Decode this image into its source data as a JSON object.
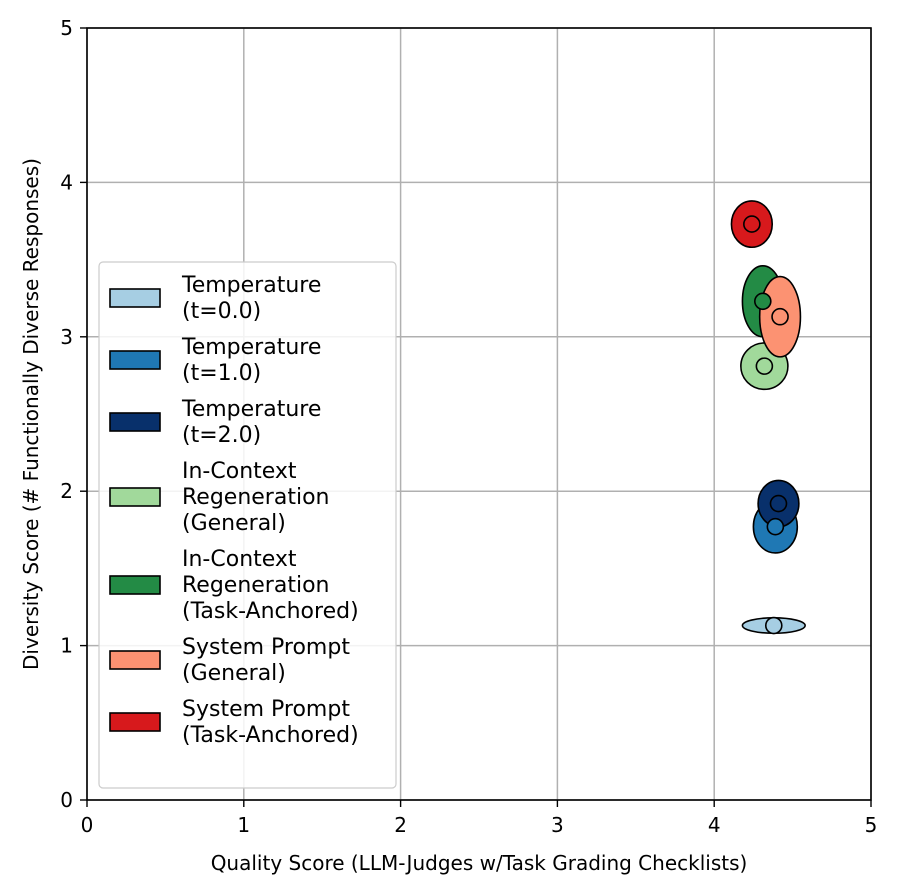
{
  "chart_data": {
    "type": "scatter",
    "title": "",
    "xlabel": "Quality Score (LLM-Judges w/Task Grading Checklists)",
    "ylabel": "Diversity Score (# Functionally Diverse Responses)",
    "xlim": [
      0,
      5
    ],
    "ylim": [
      0,
      5
    ],
    "xticks": [
      "0",
      "1",
      "2",
      "3",
      "4",
      "5"
    ],
    "yticks": [
      "0",
      "1",
      "2",
      "3",
      "4",
      "5"
    ],
    "grid": true,
    "legend_position": "center-left",
    "series": [
      {
        "name": "Temperature (t=0.0)",
        "label_lines": [
          "Temperature",
          "(t=0.0)"
        ],
        "color": "#a6cee3",
        "x": 4.38,
        "y": 1.13,
        "x_err": 0.2,
        "y_err": 0.05
      },
      {
        "name": "Temperature (t=1.0)",
        "label_lines": [
          "Temperature",
          "(t=1.0)"
        ],
        "color": "#1f78b4",
        "x": 4.39,
        "y": 1.77,
        "x_err": 0.14,
        "y_err": 0.17
      },
      {
        "name": "Temperature (t=2.0)",
        "label_lines": [
          "Temperature",
          "(t=2.0)"
        ],
        "color": "#08306b",
        "x": 4.41,
        "y": 1.92,
        "x_err": 0.13,
        "y_err": 0.15
      },
      {
        "name": "In-Context Regeneration (General)",
        "label_lines": [
          "In-Context",
          "Regeneration",
          "(General)"
        ],
        "color": "#a1d99b",
        "x": 4.32,
        "y": 2.81,
        "x_err": 0.15,
        "y_err": 0.15
      },
      {
        "name": "In-Context Regeneration (Task-Anchored)",
        "label_lines": [
          "In-Context",
          "Regeneration",
          "(Task-Anchored)"
        ],
        "color": "#238b45",
        "x": 4.31,
        "y": 3.23,
        "x_err": 0.13,
        "y_err": 0.23
      },
      {
        "name": "System Prompt (General)",
        "label_lines": [
          "System Prompt",
          "(General)"
        ],
        "color": "#fc9272",
        "x": 4.42,
        "y": 3.13,
        "x_err": 0.13,
        "y_err": 0.26
      },
      {
        "name": "System Prompt (Task-Anchored)",
        "label_lines": [
          "System Prompt",
          "(Task-Anchored)"
        ],
        "color": "#d7191c",
        "x": 4.24,
        "y": 3.73,
        "x_err": 0.13,
        "y_err": 0.15
      }
    ]
  }
}
